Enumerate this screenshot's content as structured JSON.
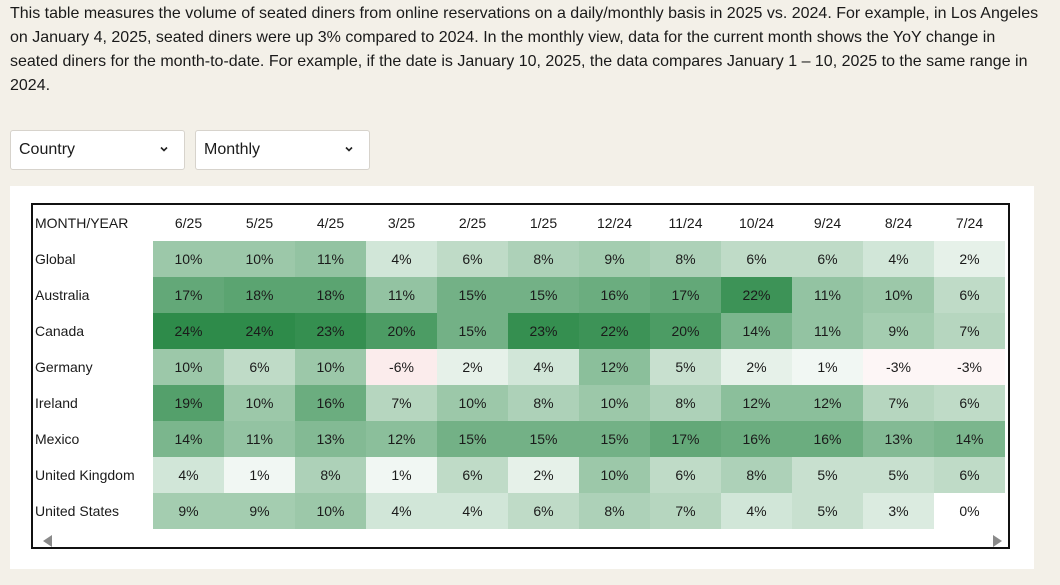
{
  "description": "This table measures the volume of seated diners from online reservations on a daily/monthly basis in 2025 vs. 2024. For example, in Los Angeles on January 4, 2025, seated diners were up 3% compared to 2024. In the monthly view, data for the current month shows the YoY change in seated diners for the month-to-date. For example, if the date is January 10, 2025, the data compares January 1 – 10, 2025 to the same range in 2024.",
  "filters": {
    "region": {
      "selected": "Country",
      "icon": "chevron-down-icon"
    },
    "period": {
      "selected": "Monthly",
      "icon": "chevron-down-icon"
    }
  },
  "scrollbar": {
    "left_icon": "triangle-left-icon",
    "right_icon": "triangle-right-icon"
  },
  "chart_data": {
    "type": "heatmap",
    "row_header": "MONTH/YEAR",
    "columns": [
      "6/25",
      "5/25",
      "4/25",
      "3/25",
      "2/25",
      "1/25",
      "12/24",
      "11/24",
      "10/24",
      "9/24",
      "8/24",
      "7/24"
    ],
    "rows": [
      {
        "name": "Global",
        "values": [
          10,
          10,
          11,
          4,
          6,
          8,
          9,
          8,
          6,
          6,
          4,
          2
        ]
      },
      {
        "name": "Australia",
        "values": [
          17,
          18,
          18,
          11,
          15,
          15,
          16,
          17,
          22,
          11,
          10,
          6
        ]
      },
      {
        "name": "Canada",
        "values": [
          24,
          24,
          23,
          20,
          15,
          23,
          22,
          20,
          14,
          11,
          9,
          7
        ]
      },
      {
        "name": "Germany",
        "values": [
          10,
          6,
          10,
          -6,
          2,
          4,
          12,
          5,
          2,
          1,
          -3,
          -3
        ]
      },
      {
        "name": "Ireland",
        "values": [
          19,
          10,
          16,
          7,
          10,
          8,
          10,
          8,
          12,
          12,
          7,
          6
        ]
      },
      {
        "name": "Mexico",
        "values": [
          14,
          11,
          13,
          12,
          15,
          15,
          15,
          17,
          16,
          16,
          13,
          14
        ]
      },
      {
        "name": "United Kingdom",
        "values": [
          4,
          1,
          8,
          1,
          6,
          2,
          10,
          6,
          8,
          5,
          5,
          6
        ]
      },
      {
        "name": "United States",
        "values": [
          9,
          9,
          10,
          4,
          4,
          6,
          8,
          7,
          4,
          5,
          3,
          0
        ]
      }
    ],
    "value_suffix": "%",
    "colors": {
      "positive_max": "#2e8b4a",
      "zero": "#ffffff",
      "negative": "#fbecec"
    }
  }
}
